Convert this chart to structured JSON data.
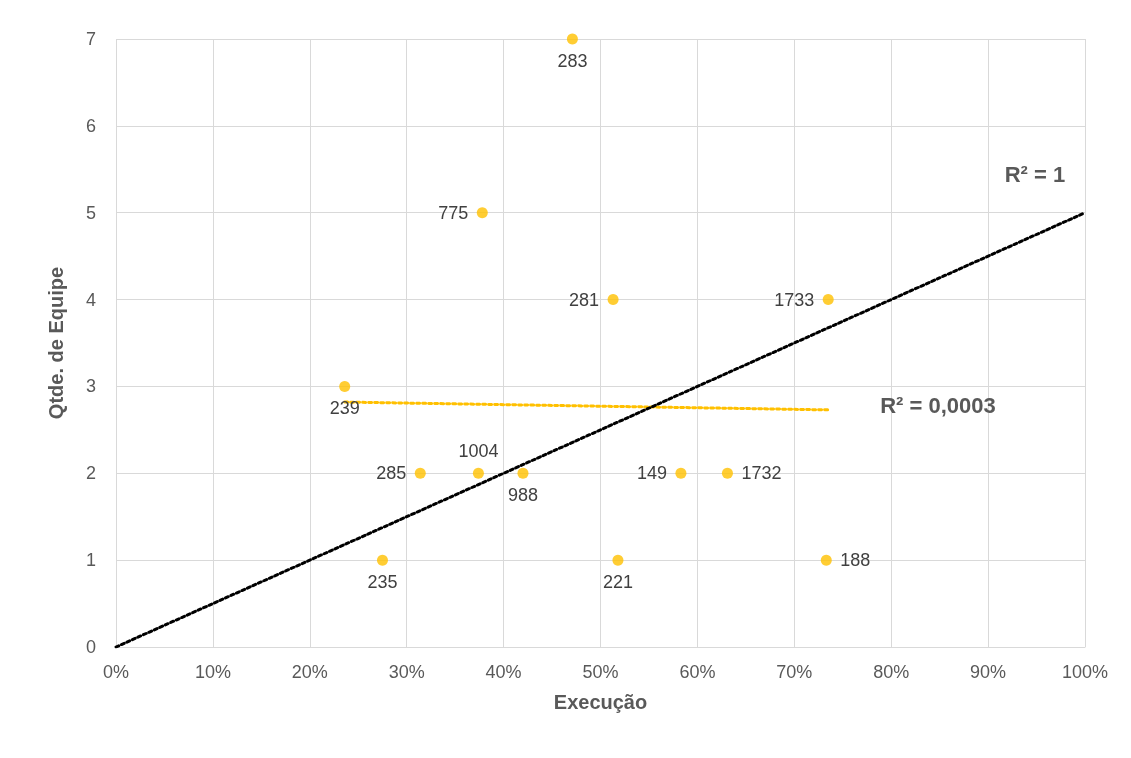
{
  "chart_data": {
    "type": "scatter",
    "xlabel": "Execução",
    "ylabel": "Qtde. de Equipe",
    "xlim": [
      0,
      100
    ],
    "xticks": [
      {
        "value": 0,
        "label": "0%"
      },
      {
        "value": 10,
        "label": "10%"
      },
      {
        "value": 20,
        "label": "20%"
      },
      {
        "value": 30,
        "label": "30%"
      },
      {
        "value": 40,
        "label": "40%"
      },
      {
        "value": 50,
        "label": "50%"
      },
      {
        "value": 60,
        "label": "60%"
      },
      {
        "value": 70,
        "label": "70%"
      },
      {
        "value": 80,
        "label": "80%"
      },
      {
        "value": 90,
        "label": "90%"
      },
      {
        "value": 100,
        "label": "100%"
      }
    ],
    "ylim": [
      0,
      7
    ],
    "yticks": [
      0,
      1,
      2,
      3,
      4,
      5,
      6,
      7
    ],
    "grid": true,
    "marker": "circle",
    "series": [
      {
        "color": "#ffc000",
        "x": [
          47.1,
          37.8,
          51.3,
          73.5,
          23.6,
          31.4,
          37.4,
          42.0,
          58.3,
          63.1,
          27.5,
          51.8,
          73.3
        ],
        "values": [
          7,
          5,
          4,
          4,
          3,
          2,
          2,
          2,
          2,
          2,
          1,
          1,
          1
        ]
      },
      {
        "type": "line",
        "color": "#ffc000",
        "line_style": "dotted",
        "marker": "none",
        "x": [
          23.6,
          73.5
        ],
        "values": [
          2.82,
          2.73
        ]
      },
      {
        "type": "line",
        "color": "#000000",
        "line_style": "dotted",
        "marker": "none",
        "x": [
          0,
          100
        ],
        "values": [
          0,
          5
        ]
      }
    ],
    "annotations": [
      {
        "text": "283",
        "x": 47.1,
        "y": 7
      },
      {
        "text": "775",
        "x": 37.8,
        "y": 5
      },
      {
        "text": "281",
        "x": 51.3,
        "y": 4
      },
      {
        "text": "1733",
        "x": 73.5,
        "y": 4
      },
      {
        "text": "239",
        "x": 23.6,
        "y": 3
      },
      {
        "text": "285",
        "x": 31.4,
        "y": 2
      },
      {
        "text": "1004",
        "x": 37.4,
        "y": 2
      },
      {
        "text": "988",
        "x": 42.0,
        "y": 2
      },
      {
        "text": "149",
        "x": 58.3,
        "y": 2
      },
      {
        "text": "1732",
        "x": 63.1,
        "y": 2
      },
      {
        "text": "235",
        "x": 27.5,
        "y": 1
      },
      {
        "text": "221",
        "x": 51.8,
        "y": 1
      },
      {
        "text": "188",
        "x": 73.3,
        "y": 1
      },
      {
        "text": "R² = 1",
        "x": 100,
        "y": 5
      },
      {
        "text": "R² = 0,0003",
        "x": 73.5,
        "y": 2.73
      }
    ]
  }
}
